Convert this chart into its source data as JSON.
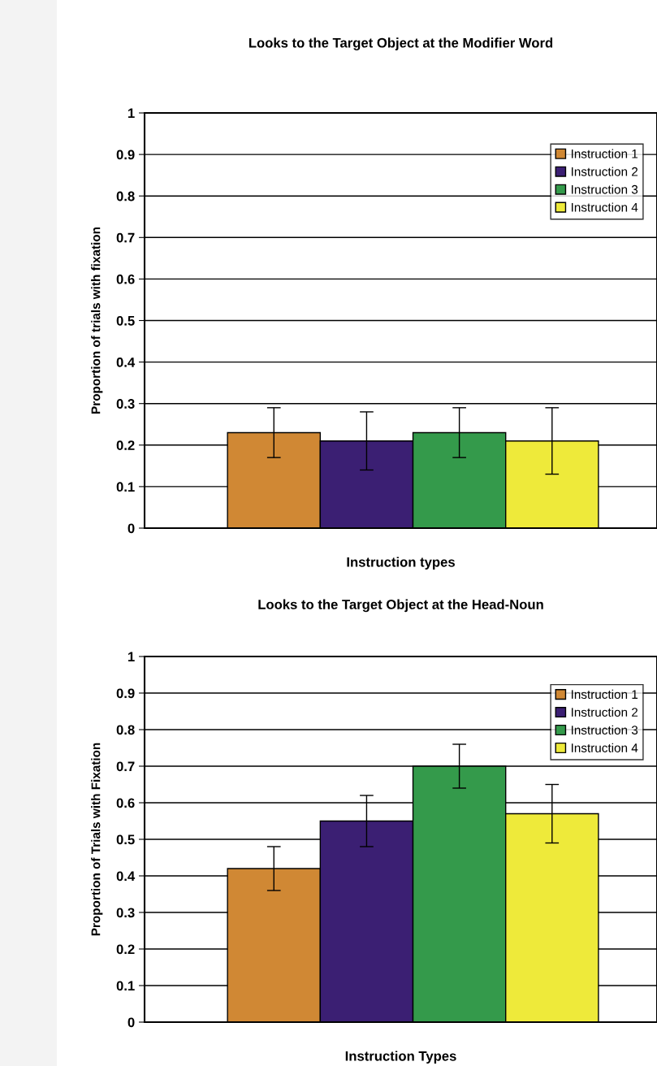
{
  "chart_data": [
    {
      "type": "bar",
      "title": "Looks to the Target Object at the Modifier Word",
      "xlabel": "Instruction types",
      "ylabel": "Proportion of trials with fixation",
      "categories": [
        null
      ],
      "series": [
        {
          "name": "Instruction 1",
          "color": "#d08834",
          "values": [
            0.23
          ],
          "errors": [
            0.06
          ]
        },
        {
          "name": "Instruction 2",
          "color": "#3b1f73",
          "values": [
            0.21
          ],
          "errors": [
            0.07
          ]
        },
        {
          "name": "Instruction 3",
          "color": "#349a4b",
          "values": [
            0.23
          ],
          "errors": [
            0.06
          ]
        },
        {
          "name": "Instruction 4",
          "color": "#eeea3a",
          "values": [
            0.21
          ],
          "errors": [
            0.08
          ]
        }
      ],
      "ylim": [
        0,
        1
      ],
      "yticks": [
        0,
        0.1,
        0.2,
        0.3,
        0.4,
        0.5,
        0.6,
        0.7,
        0.8,
        0.9,
        1
      ],
      "grid": "y",
      "legend": "top right"
    },
    {
      "type": "bar",
      "title": "Looks to the Target Object at the Head-Noun",
      "xlabel": "Instruction Types",
      "ylabel": "Proportion of Trials with Fixation",
      "categories": [
        null
      ],
      "series": [
        {
          "name": "Instruction 1",
          "color": "#d08834",
          "values": [
            0.42
          ],
          "errors": [
            0.06
          ]
        },
        {
          "name": "Instruction 2",
          "color": "#3b1f73",
          "values": [
            0.55
          ],
          "errors": [
            0.07
          ]
        },
        {
          "name": "Instruction 3",
          "color": "#349a4b",
          "values": [
            0.7
          ],
          "errors": [
            0.06
          ]
        },
        {
          "name": "Instruction 4",
          "color": "#eeea3a",
          "values": [
            0.57
          ],
          "errors": [
            0.08
          ]
        }
      ],
      "ylim": [
        0,
        1
      ],
      "yticks": [
        0,
        0.1,
        0.2,
        0.3,
        0.4,
        0.5,
        0.6,
        0.7,
        0.8,
        0.9,
        1
      ],
      "grid": "y",
      "legend": "top right"
    }
  ]
}
